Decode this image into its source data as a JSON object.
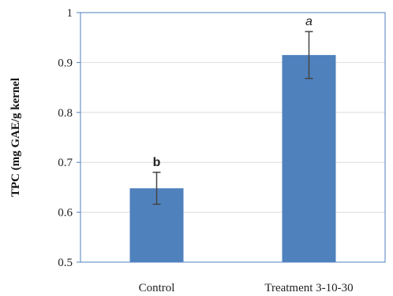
{
  "chart_data": {
    "type": "bar",
    "categories": [
      "Control",
      "Treatment 3-10-30"
    ],
    "values": [
      0.648,
      0.915
    ],
    "errors": [
      0.032,
      0.047
    ],
    "annotations": [
      "b",
      "a"
    ],
    "annotation_styles": [
      "bold",
      "italic"
    ],
    "ylabel": "TPC (mg GAE/g kernel",
    "xlabel": "",
    "title": "",
    "ylim": [
      0.5,
      1.0
    ],
    "yticks": [
      "0.5",
      "0.6",
      "0.7",
      "0.8",
      "0.9",
      "1"
    ],
    "grid": "horizontal",
    "colors": {
      "bar": "#4f81bd",
      "axis": "#4f81bd",
      "grid": "#dcdcdc",
      "error": "#444444"
    }
  }
}
